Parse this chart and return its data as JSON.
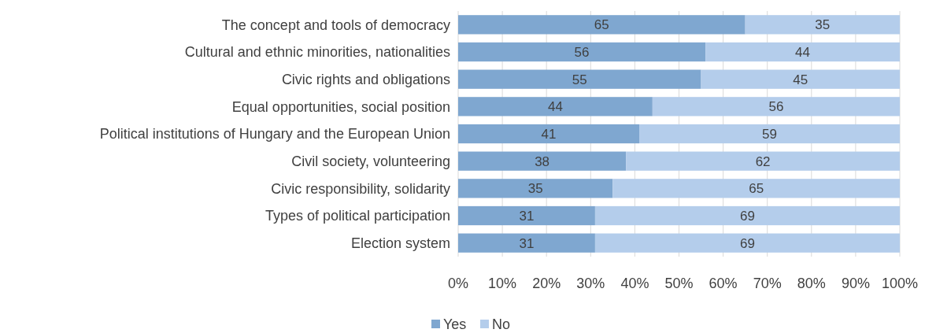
{
  "chart_data": {
    "type": "bar",
    "orientation": "horizontal",
    "stacked": true,
    "categories": [
      "The concept and tools of democracy",
      "Cultural and ethnic minorities, nationalities",
      "Civic rights and obligations",
      "Equal opportunities, social position",
      "Political institutions of Hungary and the European Union",
      "Civil society, volunteering",
      "Civic responsibility, solidarity",
      "Types of political participation",
      "Election system"
    ],
    "series": [
      {
        "name": "Yes",
        "color": "#7fa7d0",
        "values": [
          65,
          56,
          55,
          44,
          41,
          38,
          35,
          31,
          31
        ]
      },
      {
        "name": "No",
        "color": "#b4cdeb",
        "values": [
          35,
          44,
          45,
          56,
          59,
          62,
          65,
          69,
          69
        ]
      }
    ],
    "xlim": [
      0,
      100
    ],
    "xticks": [
      {
        "value": 0,
        "label": "0%"
      },
      {
        "value": 10,
        "label": "10%"
      },
      {
        "value": 20,
        "label": "20%"
      },
      {
        "value": 30,
        "label": "30%"
      },
      {
        "value": 40,
        "label": "40%"
      },
      {
        "value": 50,
        "label": "50%"
      },
      {
        "value": 60,
        "label": "60%"
      },
      {
        "value": 70,
        "label": "70%"
      },
      {
        "value": 80,
        "label": "80%"
      },
      {
        "value": 90,
        "label": "90%"
      },
      {
        "value": 100,
        "label": "100%"
      }
    ],
    "grid": "x",
    "data_labels": true,
    "legend": "bottom"
  }
}
